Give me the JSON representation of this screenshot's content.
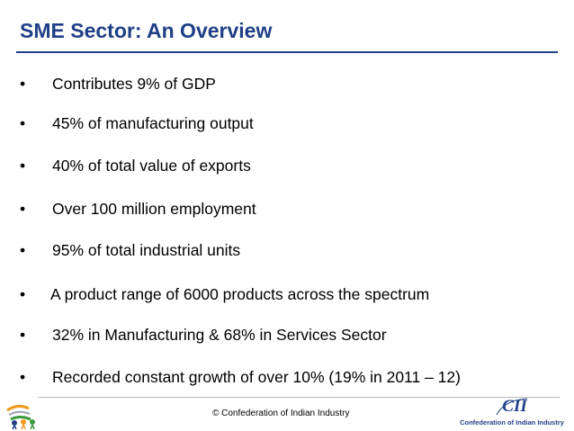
{
  "slide": {
    "title": "SME Sector: An Overview",
    "bullet_symbol": "•",
    "bullets": [
      {
        "text": "Contributes 9% of GDP"
      },
      {
        "text": "45% of manufacturing output"
      },
      {
        "text": "40% of total value of exports"
      },
      {
        "text": "Over 100 million employment"
      },
      {
        "text": "95% of total industrial units"
      },
      {
        "text": "A product range of 6000 products across the spectrum"
      },
      {
        "text": "32% in Manufacturing & 68% in Services Sector"
      },
      {
        "text": "Recorded constant growth of over 10% (19% in 2011 – 12)"
      }
    ]
  },
  "footer": {
    "copyright": "© Confederation of Indian Industry",
    "cii_logo_mark": "CII",
    "cii_logo_name": "Confederation of Indian Industry"
  },
  "colors": {
    "title": "#1f3f86",
    "text": "#000000",
    "background": "#ffffff"
  },
  "icons": {
    "left_logo": "india-emblem-logo-icon",
    "right_logo": "cii-logo-icon"
  }
}
